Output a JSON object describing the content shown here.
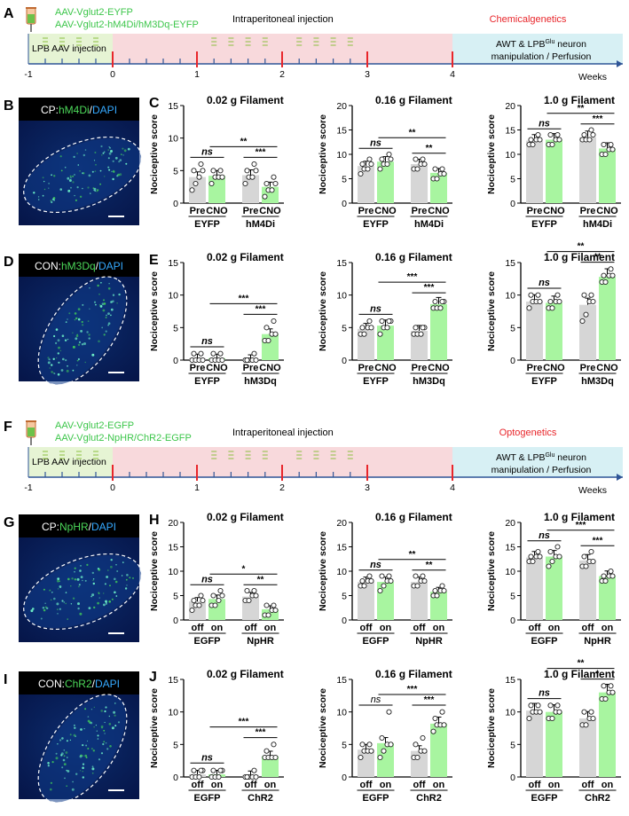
{
  "panels": {
    "A": {
      "letter": "A",
      "virus_lines": [
        "AAV-Vglut2-EYFP",
        "AAV-Vglut2-hM4Di/hM3Dq-EYFP"
      ],
      "injection_label": "LPB AAV injection",
      "ip_label": "Intraperitoneal injection",
      "method_label": "Chemicalgenetics",
      "final_box": [
        "AWT & LPB",
        "Glu",
        " neuron",
        "manipulation / Perfusion"
      ],
      "ticks": [
        "-1",
        "0",
        "1",
        "2",
        "3",
        "4"
      ],
      "axis_unit": "Weeks"
    },
    "F": {
      "letter": "F",
      "virus_lines": [
        "AAV-Vglut2-EGFP",
        "AAV-Vglut2-NpHR/ChR2-EGFP"
      ],
      "injection_label": "LPB AAV injection",
      "ip_label": "Intraperitoneal injection",
      "method_label": "Optogenetics",
      "final_box": [
        "AWT & LPB",
        "Glu",
        " neuron",
        "manipulation / Perfusion"
      ],
      "ticks": [
        "-1",
        "0",
        "1",
        "2",
        "3",
        "4"
      ],
      "axis_unit": "Weeks"
    },
    "images": [
      {
        "letter": "B",
        "label_white": "CP:",
        "label_green": "hM4Di",
        "label_sep": "/",
        "label_blue": "DAPI"
      },
      {
        "letter": "D",
        "label_white": "CON:",
        "label_green": "hM3Dq",
        "label_sep": "/",
        "label_blue": "DAPI"
      },
      {
        "letter": "G",
        "label_white": "CP:",
        "label_green": "NpHR",
        "label_sep": "/",
        "label_blue": "DAPI"
      },
      {
        "letter": "I",
        "label_white": "CON:",
        "label_green": "ChR2",
        "label_sep": "/",
        "label_blue": "DAPI"
      }
    ],
    "chart_letters": [
      "C",
      "E",
      "H",
      "J"
    ]
  },
  "colors": {
    "pre_bar": "#d6d6d6",
    "post_bar": "#a8f5a0",
    "injection_box": "#e6f4d4",
    "ip_region": "#f8d9dc",
    "final_box": "#d7f0f4",
    "tick_red": "#e8262b",
    "axis_blue": "#2f5597",
    "text_green": "#3cc64a",
    "text_red": "#e8262b",
    "dash_green": "#8cbf3f"
  },
  "chart_data": [
    {
      "row": "C",
      "type": "bar",
      "title": "0.02 g Filament",
      "ylabel": "Nociceptive score",
      "ylim": [
        0,
        15
      ],
      "yticks": [
        0,
        5,
        10,
        15
      ],
      "categories": [
        "Pre",
        "CNO",
        "Pre",
        "CNO"
      ],
      "groups": [
        "EYFP",
        "hM4Di"
      ],
      "values": [
        4.0,
        4.2,
        4.3,
        2.5
      ],
      "points": [
        [
          2,
          3,
          4,
          5,
          5,
          6
        ],
        [
          3,
          4,
          4,
          4,
          5,
          5
        ],
        [
          3,
          4,
          4,
          5,
          5,
          6
        ],
        [
          1,
          2,
          2,
          3,
          3,
          4
        ]
      ],
      "comparisons": [
        {
          "from": 0,
          "to": 1,
          "label": "ns"
        },
        {
          "from": 2,
          "to": 3,
          "label": "***"
        },
        {
          "from": 1,
          "to": 3,
          "label": "**"
        }
      ]
    },
    {
      "row": "C",
      "type": "bar",
      "title": "0.16 g Filament",
      "ylabel": "Nociceptive score",
      "ylim": [
        0,
        20
      ],
      "yticks": [
        0,
        5,
        10,
        15,
        20
      ],
      "categories": [
        "Pre",
        "CNO",
        "Pre",
        "CNO"
      ],
      "groups": [
        "EYFP",
        "hM4Di"
      ],
      "values": [
        7.6,
        8.5,
        8.0,
        6.2
      ],
      "points": [
        [
          6,
          7,
          7,
          8,
          8,
          9
        ],
        [
          7,
          8,
          8,
          9,
          9,
          10
        ],
        [
          7,
          7,
          8,
          8,
          9,
          9
        ],
        [
          5,
          5,
          6,
          6,
          7,
          7
        ]
      ],
      "comparisons": [
        {
          "from": 0,
          "to": 1,
          "label": "ns"
        },
        {
          "from": 2,
          "to": 3,
          "label": "**"
        },
        {
          "from": 1,
          "to": 3,
          "label": "**"
        }
      ]
    },
    {
      "row": "C",
      "type": "bar",
      "title": "1.0 g Filament",
      "ylabel": "Nociceptive score",
      "ylim": [
        0,
        20
      ],
      "yticks": [
        0,
        5,
        10,
        15,
        20
      ],
      "categories": [
        "Pre",
        "CNO",
        "Pre",
        "CNO"
      ],
      "groups": [
        "EYFP",
        "hM4Di"
      ],
      "values": [
        12.8,
        13.0,
        13.5,
        11.2
      ],
      "points": [
        [
          12,
          12,
          13,
          13,
          13,
          14
        ],
        [
          12,
          12,
          13,
          13,
          14,
          14
        ],
        [
          13,
          13,
          13,
          14,
          14,
          15
        ],
        [
          10,
          10,
          11,
          11,
          12,
          12
        ]
      ],
      "comparisons": [
        {
          "from": 0,
          "to": 1,
          "label": "ns"
        },
        {
          "from": 2,
          "to": 3,
          "label": "***"
        },
        {
          "from": 1,
          "to": 3,
          "label": "**"
        }
      ]
    },
    {
      "row": "E",
      "type": "bar",
      "title": "0.02 g Filament",
      "ylabel": "Nociceptive score",
      "ylim": [
        0,
        15
      ],
      "yticks": [
        0,
        5,
        10,
        15
      ],
      "categories": [
        "Pre",
        "CNO",
        "Pre",
        "CNO"
      ],
      "groups": [
        "EYFP",
        "hM3Dq"
      ],
      "values": [
        0.3,
        0.3,
        0.2,
        4.0
      ],
      "points": [
        [
          0,
          0,
          0,
          0,
          1,
          1
        ],
        [
          0,
          0,
          0,
          0,
          1,
          1
        ],
        [
          0,
          0,
          0,
          0,
          0,
          1
        ],
        [
          3,
          3,
          4,
          4,
          5,
          6
        ]
      ],
      "comparisons": [
        {
          "from": 0,
          "to": 1,
          "label": "ns"
        },
        {
          "from": 2,
          "to": 3,
          "label": "***"
        },
        {
          "from": 1,
          "to": 3,
          "label": "***"
        }
      ]
    },
    {
      "row": "E",
      "type": "bar",
      "title": "0.16 g Filament",
      "ylabel": "Nociceptive score",
      "ylim": [
        0,
        15
      ],
      "yticks": [
        0,
        5,
        10,
        15
      ],
      "categories": [
        "Pre",
        "CNO",
        "Pre",
        "CNO"
      ],
      "groups": [
        "EYFP",
        "hM3Dq"
      ],
      "values": [
        4.8,
        5.3,
        4.5,
        8.6
      ],
      "points": [
        [
          4,
          4,
          5,
          5,
          5,
          6
        ],
        [
          4,
          5,
          5,
          6,
          6,
          6
        ],
        [
          4,
          4,
          4,
          5,
          5,
          5
        ],
        [
          8,
          8,
          8,
          9,
          9,
          9
        ]
      ],
      "comparisons": [
        {
          "from": 0,
          "to": 1,
          "label": "ns"
        },
        {
          "from": 2,
          "to": 3,
          "label": "***"
        },
        {
          "from": 1,
          "to": 3,
          "label": "***"
        }
      ]
    },
    {
      "row": "E",
      "type": "bar",
      "title": "1.0 g Filament",
      "ylabel": "Nociceptive score",
      "ylim": [
        0,
        15
      ],
      "yticks": [
        0,
        5,
        10,
        15
      ],
      "categories": [
        "Pre",
        "CNO",
        "Pre",
        "CNO"
      ],
      "groups": [
        "EYFP",
        "hM3Dq"
      ],
      "values": [
        9.0,
        8.8,
        8.5,
        12.8
      ],
      "points": [
        [
          8,
          9,
          9,
          9,
          10,
          10
        ],
        [
          8,
          8,
          9,
          9,
          9,
          10
        ],
        [
          6,
          7,
          9,
          9,
          10,
          10
        ],
        [
          12,
          12,
          13,
          13,
          13,
          14
        ]
      ],
      "comparisons": [
        {
          "from": 0,
          "to": 1,
          "label": "ns"
        },
        {
          "from": 2,
          "to": 3,
          "label": "**"
        },
        {
          "from": 1,
          "to": 3,
          "label": "**"
        }
      ]
    },
    {
      "row": "H",
      "type": "bar",
      "title": "0.02 g Filament",
      "ylabel": "Nociceptive score",
      "ylim": [
        0,
        20
      ],
      "yticks": [
        0,
        5,
        10,
        15,
        20
      ],
      "categories": [
        "off",
        "on",
        "off",
        "on"
      ],
      "groups": [
        "EGFP",
        "NpHR"
      ],
      "values": [
        3.8,
        4.3,
        4.8,
        2.2
      ],
      "points": [
        [
          2,
          3,
          3,
          4,
          4,
          5
        ],
        [
          3,
          3,
          4,
          5,
          5,
          6
        ],
        [
          4,
          4,
          5,
          5,
          6,
          6
        ],
        [
          1,
          1,
          2,
          2,
          3,
          3
        ]
      ],
      "comparisons": [
        {
          "from": 0,
          "to": 1,
          "label": "ns"
        },
        {
          "from": 2,
          "to": 3,
          "label": "**"
        },
        {
          "from": 1,
          "to": 3,
          "label": "*"
        }
      ]
    },
    {
      "row": "H",
      "type": "bar",
      "title": "0.16 g Filament",
      "ylabel": "Nociceptive score",
      "ylim": [
        0,
        20
      ],
      "yticks": [
        0,
        5,
        10,
        15,
        20
      ],
      "categories": [
        "off",
        "on",
        "off",
        "on"
      ],
      "groups": [
        "EGFP",
        "NpHR"
      ],
      "values": [
        7.8,
        7.8,
        7.8,
        5.8
      ],
      "points": [
        [
          7,
          7,
          8,
          8,
          8,
          9
        ],
        [
          6,
          7,
          8,
          8,
          9,
          9
        ],
        [
          7,
          7,
          8,
          8,
          9,
          9
        ],
        [
          5,
          5,
          6,
          6,
          6,
          7
        ]
      ],
      "comparisons": [
        {
          "from": 0,
          "to": 1,
          "label": "ns"
        },
        {
          "from": 2,
          "to": 3,
          "label": "**"
        },
        {
          "from": 1,
          "to": 3,
          "label": "**"
        }
      ]
    },
    {
      "row": "H",
      "type": "bar",
      "title": "1.0 g Filament",
      "ylabel": "Nociceptive score",
      "ylim": [
        0,
        20
      ],
      "yticks": [
        0,
        5,
        10,
        15,
        20
      ],
      "categories": [
        "off",
        "on",
        "off",
        "on"
      ],
      "groups": [
        "EGFP",
        "NpHR"
      ],
      "values": [
        12.8,
        13.0,
        12.2,
        9.0
      ],
      "points": [
        [
          12,
          12,
          13,
          13,
          13,
          14
        ],
        [
          11,
          12,
          13,
          13,
          14,
          15
        ],
        [
          11,
          11,
          12,
          12,
          13,
          14
        ],
        [
          8,
          8,
          9,
          9,
          9,
          10
        ]
      ],
      "comparisons": [
        {
          "from": 0,
          "to": 1,
          "label": "ns"
        },
        {
          "from": 2,
          "to": 3,
          "label": "***"
        },
        {
          "from": 1,
          "to": 3,
          "label": "***"
        }
      ]
    },
    {
      "row": "J",
      "type": "bar",
      "title": "0.02 g Filament",
      "ylabel": "Nociceptive score",
      "ylim": [
        0,
        15
      ],
      "yticks": [
        0,
        5,
        10,
        15
      ],
      "categories": [
        "off",
        "on",
        "off",
        "on"
      ],
      "groups": [
        "EGFP",
        "ChR2"
      ],
      "values": [
        0.4,
        0.4,
        0.3,
        3.2
      ],
      "points": [
        [
          0,
          0,
          0,
          1,
          1,
          1
        ],
        [
          0,
          0,
          0,
          1,
          1,
          1
        ],
        [
          0,
          0,
          0,
          0,
          0,
          1
        ],
        [
          3,
          3,
          3,
          3,
          4,
          5
        ]
      ],
      "comparisons": [
        {
          "from": 0,
          "to": 1,
          "label": "ns"
        },
        {
          "from": 2,
          "to": 3,
          "label": "***"
        },
        {
          "from": 1,
          "to": 3,
          "label": "***"
        }
      ]
    },
    {
      "row": "J",
      "type": "bar",
      "title": "0.16 g Filament",
      "ylabel": "Nociceptive score",
      "ylim": [
        0,
        15
      ],
      "yticks": [
        0,
        5,
        10,
        15
      ],
      "categories": [
        "off",
        "on",
        "off",
        "on"
      ],
      "groups": [
        "EGFP",
        "ChR2"
      ],
      "values": [
        4.2,
        5.2,
        4.0,
        8.2
      ],
      "points": [
        [
          3,
          4,
          4,
          4,
          5,
          5
        ],
        [
          3,
          4,
          5,
          5,
          6,
          10
        ],
        [
          3,
          3,
          4,
          4,
          5,
          6
        ],
        [
          7,
          8,
          8,
          8,
          9,
          10
        ]
      ],
      "comparisons": [
        {
          "from": 0,
          "to": 1,
          "label": "ns",
          "italic_thin": true
        },
        {
          "from": 2,
          "to": 3,
          "label": "***"
        },
        {
          "from": 1,
          "to": 3,
          "label": "***"
        }
      ]
    },
    {
      "row": "J",
      "type": "bar",
      "title": "1.0 g Filament",
      "ylabel": "Nociceptive score",
      "ylim": [
        0,
        15
      ],
      "yticks": [
        0,
        5,
        10,
        15
      ],
      "categories": [
        "off",
        "on",
        "off",
        "on"
      ],
      "groups": [
        "EGFP",
        "ChR2"
      ],
      "values": [
        10.2,
        10.0,
        9.0,
        13.0
      ],
      "points": [
        [
          9,
          10,
          10,
          10,
          11,
          11
        ],
        [
          9,
          9,
          10,
          10,
          11,
          11
        ],
        [
          8,
          8,
          9,
          9,
          10,
          10
        ],
        [
          12,
          12,
          13,
          13,
          14,
          14
        ]
      ],
      "comparisons": [
        {
          "from": 0,
          "to": 1,
          "label": "ns"
        },
        {
          "from": 2,
          "to": 3,
          "label": "*"
        },
        {
          "from": 1,
          "to": 3,
          "label": "**"
        }
      ]
    }
  ]
}
